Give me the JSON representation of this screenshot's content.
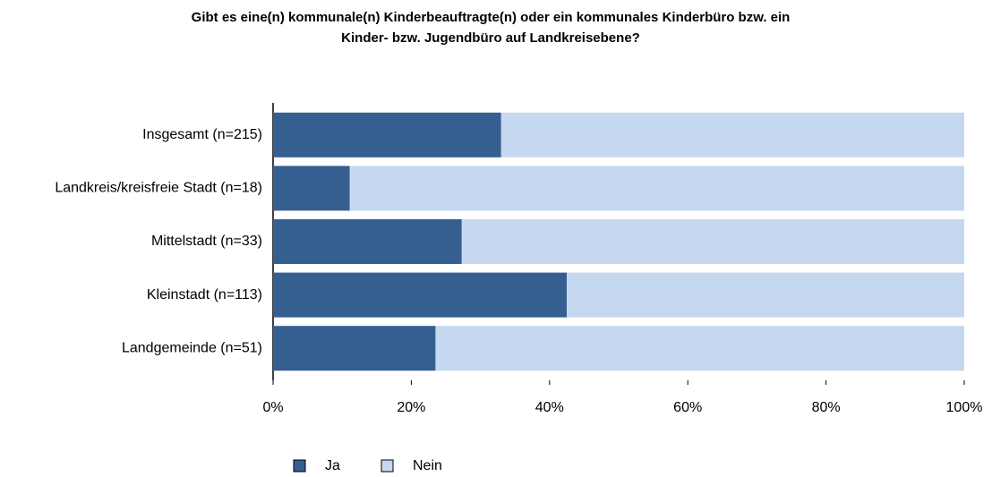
{
  "chart_data": {
    "type": "bar_stacked_horizontal",
    "title": [
      "Gibt es eine(n) kommunale(n) Kinderbeauftragte(n) oder ein kommunales Kinderbüro bzw. ein",
      "Kinder- bzw. Jugendbüro auf Landkreisebene?"
    ],
    "categories": [
      "Insgesamt (n=215)",
      "Landkreis/kreisfreie Stadt (n=18)",
      "Mittelstadt (n=33)",
      "Kleinstadt (n=113)",
      "Landgemeinde (n=51)"
    ],
    "series": [
      {
        "name": "Ja",
        "color": "#355f91",
        "values": [
          33,
          11.1,
          27.3,
          42.5,
          23.5
        ]
      },
      {
        "name": "Nein",
        "color": "#c6d8f0",
        "values": [
          67,
          88.9,
          72.7,
          57.5,
          76.5
        ]
      }
    ],
    "xlim": [
      0,
      100
    ],
    "xticks": [
      {
        "value": 0,
        "label": "0%"
      },
      {
        "value": 20,
        "label": "20%"
      },
      {
        "value": 40,
        "label": "40%"
      },
      {
        "value": 60,
        "label": "60%"
      },
      {
        "value": 80,
        "label": "80%"
      },
      {
        "value": 100,
        "label": "100%"
      }
    ],
    "legend": "bottom"
  }
}
